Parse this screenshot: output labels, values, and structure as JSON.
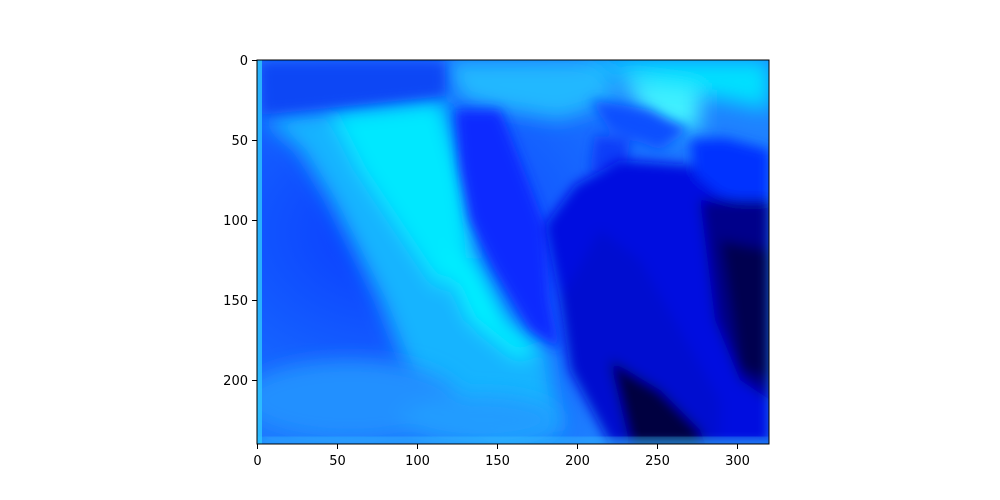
{
  "chart_data": {
    "type": "heatmap",
    "title": "",
    "xlabel": "",
    "ylabel": "",
    "xlim": [
      0,
      320
    ],
    "ylim": [
      240,
      0
    ],
    "x_ticks": [
      {
        "value": 0,
        "label": "0"
      },
      {
        "value": 50,
        "label": "50"
      },
      {
        "value": 100,
        "label": "100"
      },
      {
        "value": 150,
        "label": "150"
      },
      {
        "value": 200,
        "label": "200"
      },
      {
        "value": 250,
        "label": "250"
      },
      {
        "value": 300,
        "label": "300"
      }
    ],
    "y_ticks": [
      {
        "value": 0,
        "label": "0"
      },
      {
        "value": 50,
        "label": "50"
      },
      {
        "value": 100,
        "label": "100"
      },
      {
        "value": 150,
        "label": "150"
      },
      {
        "value": 200,
        "label": "200"
      }
    ],
    "colors": {
      "cyan": "#00ffff",
      "bright_blue": "#0050ff",
      "blue": "#0010f0",
      "navy": "#00003a"
    }
  }
}
